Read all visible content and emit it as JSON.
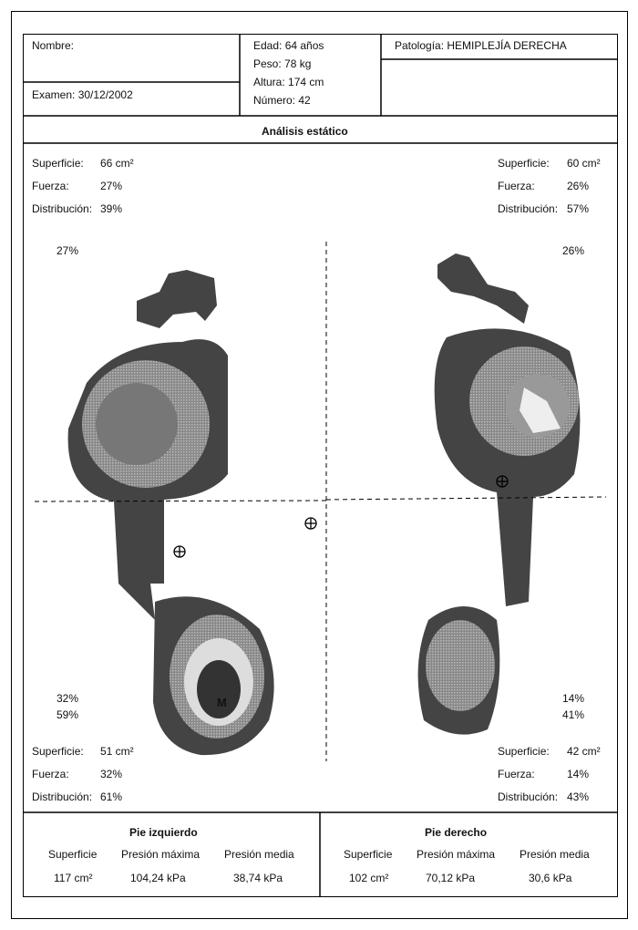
{
  "header": {
    "name_label": "Nombre:",
    "exam": "Examen: 30/12/2002",
    "age": "Edad: 64 años",
    "weight": "Peso: 78 kg",
    "height": "Altura: 174 cm",
    "number": "Número: 42",
    "pathology": "Patología: HEMIPLEJÍA DERECHA"
  },
  "section_title": "Análisis estático",
  "top_left": [
    [
      "Superficie:",
      "66 cm²"
    ],
    [
      "Fuerza:",
      "27%"
    ],
    [
      "Distribución:",
      "39%"
    ]
  ],
  "top_right": [
    [
      "Superficie:",
      "60 cm²"
    ],
    [
      "Fuerza:",
      "26%"
    ],
    [
      "Distribución:",
      "57%"
    ]
  ],
  "bottom_left": [
    [
      "Superficie:",
      "51 cm²"
    ],
    [
      "Fuerza:",
      "32%"
    ],
    [
      "Distribución:",
      "61%"
    ]
  ],
  "bottom_right": [
    [
      "Superficie:",
      "42 cm²"
    ],
    [
      "Fuerza:",
      "14%"
    ],
    [
      "Distribución:",
      "43%"
    ]
  ],
  "quadrants": {
    "left_top": "27%",
    "right_top": "26%",
    "left_bottom": [
      "32%",
      "59%"
    ],
    "right_bottom": [
      "14%",
      "41%"
    ]
  },
  "marker": "M",
  "summary": [
    {
      "title": "Pie izquierdo",
      "headers": [
        "Superficie",
        "Presión máxima",
        "Presión media"
      ],
      "values": [
        "117 cm²",
        "104,24 kPa",
        "38,74 kPa"
      ]
    },
    {
      "title": "Pie derecho",
      "headers": [
        "Superficie",
        "Presión máxima",
        "Presión media"
      ],
      "values": [
        "102 cm²",
        "70,12 kPa",
        "30,6 kPa"
      ]
    }
  ]
}
